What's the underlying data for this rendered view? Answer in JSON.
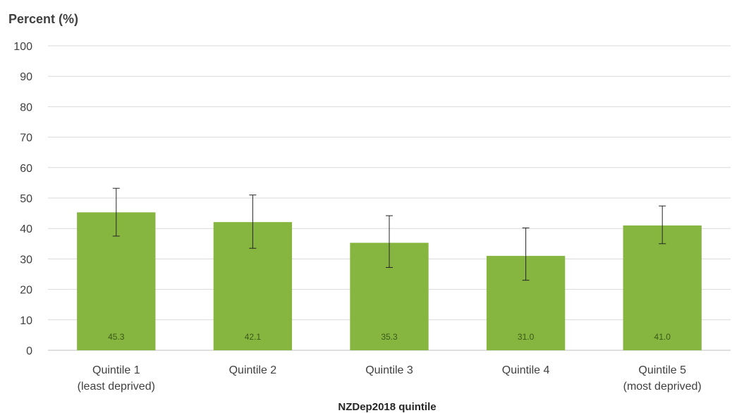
{
  "chart_data": {
    "type": "bar",
    "ylabel": "Percent (%)",
    "xlabel": "NZDep2018 quintile",
    "categories": [
      [
        "Quintile 1",
        "(least deprived)"
      ],
      [
        "Quintile 2"
      ],
      [
        "Quintile 3"
      ],
      [
        "Quintile 4"
      ],
      [
        "Quintile 5",
        "(most deprived)"
      ]
    ],
    "values": [
      45.3,
      42.1,
      35.3,
      31.0,
      41.0
    ],
    "value_labels": [
      "45.3",
      "42.1",
      "35.3",
      "31.0",
      "41.0"
    ],
    "error_low": [
      37.5,
      33.5,
      27.2,
      23.0,
      35.0
    ],
    "error_high": [
      53.2,
      51.0,
      44.2,
      40.2,
      47.4
    ],
    "ylim": [
      0,
      100
    ],
    "yticks": [
      0,
      10,
      20,
      30,
      40,
      50,
      60,
      70,
      80,
      90,
      100
    ],
    "grid": true,
    "colors": {
      "bar": "#86b540",
      "grid": "#d9d9d9",
      "axis": "#bfbfbf",
      "text": "#404040",
      "value_label": "#3b5a1a",
      "error_bar": "#262626"
    }
  }
}
